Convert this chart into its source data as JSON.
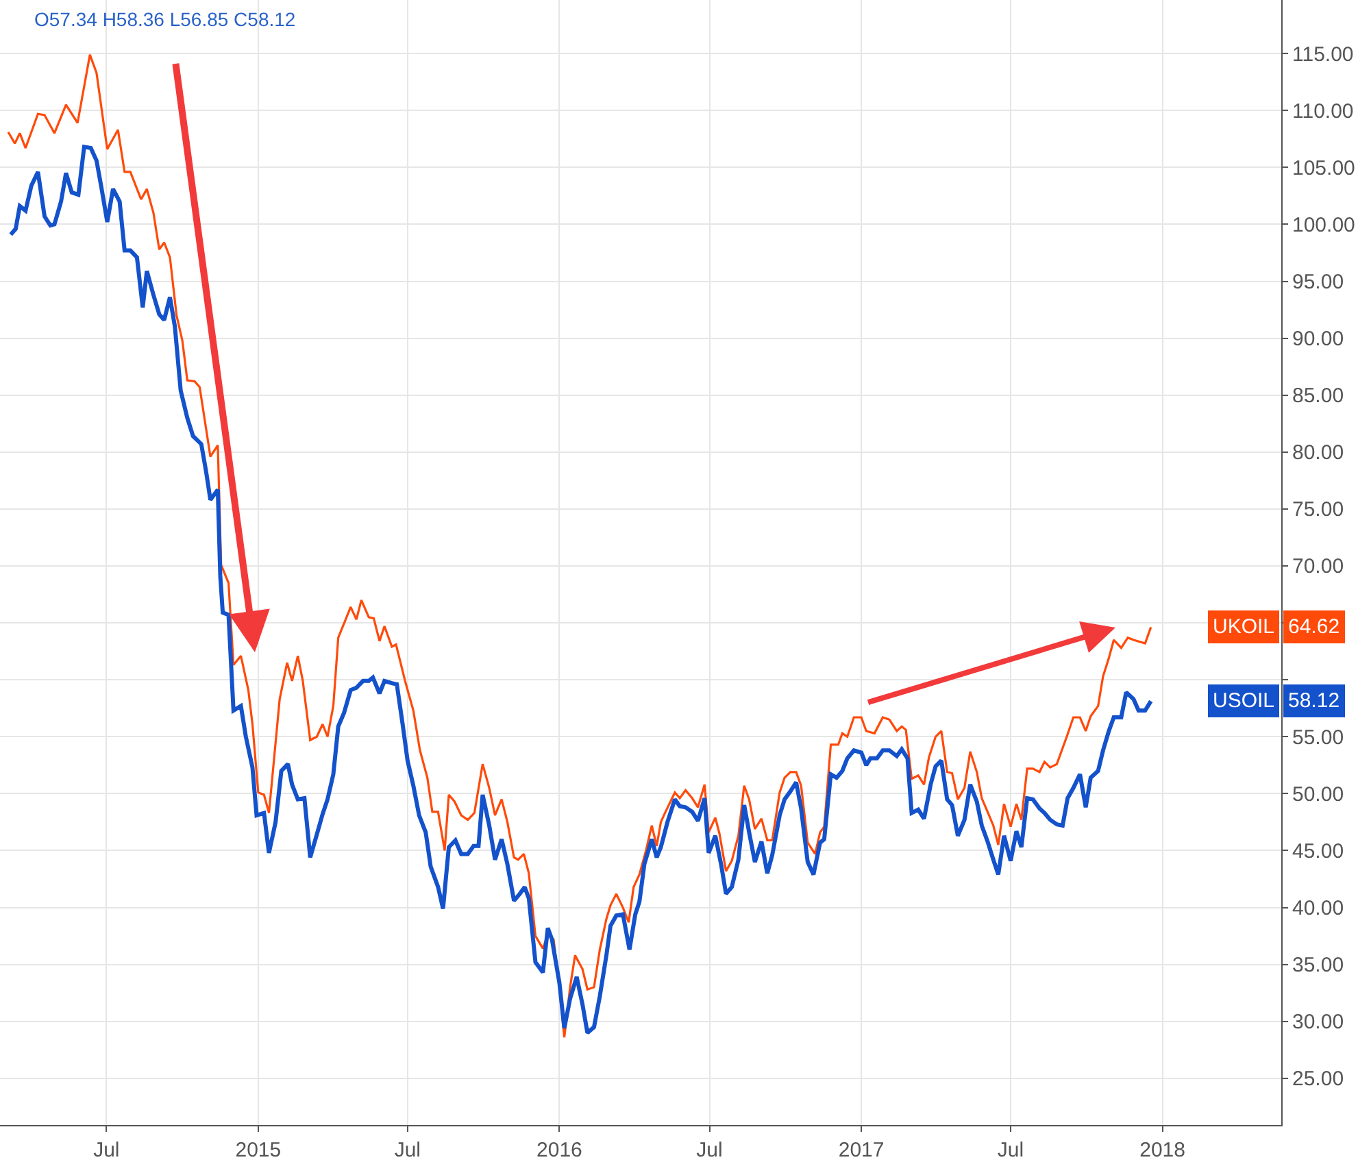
{
  "chart_data": {
    "type": "line",
    "xlim": [
      "2014-02-22",
      "2018-05-25"
    ],
    "ylim": [
      20.9,
      119.7
    ],
    "xticks": [
      {
        "value": "2014-07-01",
        "label": "Jul"
      },
      {
        "value": "2015-01-01",
        "label": "2015"
      },
      {
        "value": "2015-07-01",
        "label": "Jul"
      },
      {
        "value": "2016-01-01",
        "label": "2016"
      },
      {
        "value": "2016-07-01",
        "label": "Jul"
      },
      {
        "value": "2017-01-01",
        "label": "2017"
      },
      {
        "value": "2017-07-01",
        "label": "Jul"
      },
      {
        "value": "2018-01-01",
        "label": "2018"
      }
    ],
    "yticks": [
      {
        "value": 25,
        "label": "25.00"
      },
      {
        "value": 30,
        "label": "30.00"
      },
      {
        "value": 35,
        "label": "35.00"
      },
      {
        "value": 40,
        "label": "40.00"
      },
      {
        "value": 45,
        "label": "45.00"
      },
      {
        "value": 50,
        "label": "50.00"
      },
      {
        "value": 55,
        "label": "55.00"
      },
      {
        "value": 60,
        "label": null
      },
      {
        "value": 65,
        "label": null
      },
      {
        "value": 70,
        "label": "70.00"
      },
      {
        "value": 75,
        "label": "75.00"
      },
      {
        "value": 80,
        "label": "80.00"
      },
      {
        "value": 85,
        "label": "85.00"
      },
      {
        "value": 90,
        "label": "90.00"
      },
      {
        "value": 95,
        "label": "95.00"
      },
      {
        "value": 100,
        "label": "100.00"
      },
      {
        "value": 105,
        "label": "105.00"
      },
      {
        "value": 110,
        "label": "110.00"
      },
      {
        "value": 115,
        "label": "115.00"
      }
    ],
    "grid": true,
    "legend": "right",
    "marker": "none",
    "line_style": "solid",
    "annotations": [
      "O57.34 H58.36 L56.85 C58.12",
      "64.62",
      "58.12"
    ],
    "series": [
      {
        "name": "UKOIL",
        "color": "#ff4a0a",
        "x": [
          "2014-03-04",
          "2014-03-12",
          "2014-03-18",
          "2014-03-25",
          "2014-04-09",
          "2014-04-17",
          "2014-04-29",
          "2014-05-13",
          "2014-05-27",
          "2014-06-11",
          "2014-06-19",
          "2014-07-02",
          "2014-07-15",
          "2014-07-23",
          "2014-07-30",
          "2014-08-12",
          "2014-08-19",
          "2014-08-27",
          "2014-09-03",
          "2014-09-09",
          "2014-09-16",
          "2014-09-24",
          "2014-10-01",
          "2014-10-07",
          "2014-10-16",
          "2014-10-22",
          "2014-11-04",
          "2014-11-13",
          "2014-11-17",
          "2014-11-26",
          "2014-12-02",
          "2014-12-11",
          "2014-12-20",
          "2014-12-25",
          "2015-01-01",
          "2015-01-08",
          "2015-01-14",
          "2015-01-27",
          "2015-02-05",
          "2015-02-11",
          "2015-02-18",
          "2015-02-24",
          "2015-03-05",
          "2015-03-13",
          "2015-03-20",
          "2015-03-26",
          "2015-04-02",
          "2015-04-08",
          "2015-04-17",
          "2015-04-23",
          "2015-04-30",
          "2015-05-06",
          "2015-05-15",
          "2015-05-21",
          "2015-05-28",
          "2015-06-03",
          "2015-06-12",
          "2015-06-17",
          "2015-06-28",
          "2015-07-08",
          "2015-07-16",
          "2015-07-25",
          "2015-07-31",
          "2015-08-07",
          "2015-08-15",
          "2015-08-20",
          "2015-08-27",
          "2015-09-04",
          "2015-09-12",
          "2015-09-20",
          "2015-09-30",
          "2015-10-08",
          "2015-10-15",
          "2015-10-23",
          "2015-10-30",
          "2015-11-07",
          "2015-11-12",
          "2015-11-19",
          "2015-11-25",
          "2015-12-03",
          "2015-12-12",
          "2015-12-18",
          "2015-12-25",
          "2016-01-01",
          "2016-01-07",
          "2016-01-14",
          "2016-01-20",
          "2016-01-29",
          "2016-02-04",
          "2016-02-12",
          "2016-02-19",
          "2016-02-27",
          "2016-03-03",
          "2016-03-10",
          "2016-03-18",
          "2016-03-25",
          "2016-03-31",
          "2016-04-07",
          "2016-04-15",
          "2016-04-22",
          "2016-04-28",
          "2016-05-03",
          "2016-05-08",
          "2016-05-20",
          "2016-05-26",
          "2016-06-02",
          "2016-06-10",
          "2016-06-17",
          "2016-06-25",
          "2016-06-30",
          "2016-07-08",
          "2016-07-13",
          "2016-07-21",
          "2016-07-28",
          "2016-08-05",
          "2016-08-12",
          "2016-08-18",
          "2016-08-25",
          "2016-09-02",
          "2016-09-09",
          "2016-09-15",
          "2016-09-24",
          "2016-09-30",
          "2016-10-07",
          "2016-10-14",
          "2016-10-20",
          "2016-10-28",
          "2016-11-06",
          "2016-11-12",
          "2016-11-17",
          "2016-11-25",
          "2016-12-04",
          "2016-12-09",
          "2016-12-15",
          "2016-12-23",
          "2017-01-01",
          "2017-01-07",
          "2017-01-17",
          "2017-01-27",
          "2017-02-04",
          "2017-02-13",
          "2017-02-19",
          "2017-02-24",
          "2017-03-03",
          "2017-03-11",
          "2017-03-18",
          "2017-03-24",
          "2017-04-01",
          "2017-04-08",
          "2017-04-15",
          "2017-04-21",
          "2017-04-28",
          "2017-05-06",
          "2017-05-13",
          "2017-05-21",
          "2017-05-27",
          "2017-06-03",
          "2017-06-10",
          "2017-06-16",
          "2017-06-23",
          "2017-07-01",
          "2017-07-08",
          "2017-07-14",
          "2017-07-21",
          "2017-07-28",
          "2017-08-05",
          "2017-08-11",
          "2017-08-18",
          "2017-08-26",
          "2017-08-31",
          "2017-09-07",
          "2017-09-15",
          "2017-09-23",
          "2017-09-30",
          "2017-10-06",
          "2017-10-15",
          "2017-10-21",
          "2017-10-28",
          "2017-11-03",
          "2017-11-12",
          "2017-11-20",
          "2017-11-27",
          "2017-12-11",
          "2017-12-18"
        ],
        "values": [
          108.1,
          107.1,
          108.0,
          106.7,
          109.7,
          109.6,
          108.0,
          110.5,
          108.9,
          114.9,
          113.3,
          106.6,
          108.3,
          104.6,
          104.6,
          102.2,
          103.1,
          101.0,
          97.8,
          98.4,
          97.1,
          92.0,
          89.8,
          86.3,
          86.2,
          85.7,
          79.6,
          80.6,
          70.1,
          68.5,
          61.3,
          62.1,
          59.1,
          56.1,
          50.1,
          49.9,
          48.3,
          58.3,
          61.5,
          59.9,
          62.1,
          59.9,
          54.7,
          55.0,
          56.1,
          55.0,
          57.7,
          63.7,
          65.3,
          66.4,
          65.3,
          67.0,
          65.5,
          65.4,
          63.4,
          64.7,
          62.9,
          63.1,
          59.9,
          57.3,
          53.8,
          51.4,
          48.4,
          48.4,
          45.0,
          49.9,
          49.3,
          48.1,
          47.7,
          48.3,
          52.6,
          50.5,
          48.1,
          49.5,
          47.5,
          44.4,
          44.2,
          44.7,
          43.0,
          37.5,
          36.4,
          37.6,
          37.2,
          33.0,
          28.6,
          33.0,
          35.8,
          34.6,
          32.8,
          33.0,
          36.3,
          39.0,
          40.2,
          41.2,
          40.0,
          38.7,
          41.8,
          42.9,
          45.0,
          47.2,
          45.4,
          47.5,
          48.3,
          50.1,
          49.6,
          50.3,
          49.6,
          48.8,
          50.8,
          46.6,
          47.9,
          46.5,
          43.2,
          44.1,
          46.3,
          50.7,
          49.5,
          46.9,
          47.8,
          45.9,
          45.9,
          50.1,
          51.4,
          51.9,
          51.9,
          50.7,
          45.7,
          44.7,
          46.6,
          47.1,
          54.3,
          54.3,
          55.3,
          55.0,
          56.7,
          56.7,
          55.5,
          55.3,
          56.7,
          56.5,
          55.5,
          55.9,
          55.6,
          51.3,
          51.6,
          50.8,
          53.2,
          55.0,
          55.5,
          51.9,
          51.8,
          49.5,
          50.5,
          53.7,
          51.9,
          49.6,
          48.4,
          47.2,
          45.5,
          49.1,
          47.1,
          49.1,
          47.7,
          52.2,
          52.2,
          51.9,
          52.8,
          52.3,
          52.6,
          53.6,
          55.0,
          56.7,
          56.7,
          55.5,
          56.8,
          57.7,
          60.3,
          61.9,
          63.5,
          62.8,
          63.7,
          63.5,
          63.2,
          64.62
        ]
      },
      {
        "name": "USOIL",
        "color": "#1452cc",
        "x": [
          "2014-03-07",
          "2014-03-13",
          "2014-03-18",
          "2014-03-25",
          "2014-04-01",
          "2014-04-09",
          "2014-04-17",
          "2014-04-24",
          "2014-04-29",
          "2014-05-07",
          "2014-05-13",
          "2014-05-20",
          "2014-05-28",
          "2014-06-04",
          "2014-06-12",
          "2014-06-19",
          "2014-06-25",
          "2014-07-02",
          "2014-07-09",
          "2014-07-17",
          "2014-07-23",
          "2014-07-30",
          "2014-08-07",
          "2014-08-14",
          "2014-08-19",
          "2014-08-27",
          "2014-09-03",
          "2014-09-09",
          "2014-09-16",
          "2014-09-22",
          "2014-09-29",
          "2014-10-07",
          "2014-10-14",
          "2014-10-24",
          "2014-10-30",
          "2014-11-04",
          "2014-11-13",
          "2014-11-16",
          "2014-11-19",
          "2014-11-26",
          "2014-12-02",
          "2014-12-11",
          "2014-12-17",
          "2014-12-25",
          "2014-12-30",
          "2015-01-08",
          "2015-01-14",
          "2015-01-22",
          "2015-01-29",
          "2015-02-06",
          "2015-02-11",
          "2015-02-18",
          "2015-02-26",
          "2015-03-05",
          "2015-03-13",
          "2015-03-20",
          "2015-03-26",
          "2015-04-02",
          "2015-04-08",
          "2015-04-15",
          "2015-04-23",
          "2015-04-30",
          "2015-05-08",
          "2015-05-15",
          "2015-05-20",
          "2015-05-28",
          "2015-06-03",
          "2015-06-12",
          "2015-06-18",
          "2015-06-25",
          "2015-07-01",
          "2015-07-08",
          "2015-07-15",
          "2015-07-23",
          "2015-07-29",
          "2015-08-07",
          "2015-08-13",
          "2015-08-20",
          "2015-08-28",
          "2015-09-04",
          "2015-09-12",
          "2015-09-19",
          "2015-09-25",
          "2015-09-30",
          "2015-10-08",
          "2015-10-15",
          "2015-10-23",
          "2015-10-30",
          "2015-11-07",
          "2015-11-14",
          "2015-11-20",
          "2015-11-25",
          "2015-12-03",
          "2015-12-12",
          "2015-12-18",
          "2015-12-23",
          "2016-01-01",
          "2016-01-07",
          "2016-01-14",
          "2016-01-22",
          "2016-01-29",
          "2016-02-04",
          "2016-02-12",
          "2016-02-19",
          "2016-02-27",
          "2016-03-03",
          "2016-03-10",
          "2016-03-18",
          "2016-03-26",
          "2016-04-02",
          "2016-04-07",
          "2016-04-13",
          "2016-04-22",
          "2016-04-28",
          "2016-05-03",
          "2016-05-11",
          "2016-05-20",
          "2016-05-26",
          "2016-06-02",
          "2016-06-10",
          "2016-06-17",
          "2016-06-25",
          "2016-06-30",
          "2016-07-08",
          "2016-07-15",
          "2016-07-21",
          "2016-07-28",
          "2016-08-05",
          "2016-08-12",
          "2016-08-18",
          "2016-08-25",
          "2016-09-02",
          "2016-09-09",
          "2016-09-15",
          "2016-09-24",
          "2016-09-30",
          "2016-10-07",
          "2016-10-14",
          "2016-10-20",
          "2016-10-28",
          "2016-11-04",
          "2016-11-12",
          "2016-11-17",
          "2016-11-25",
          "2016-12-02",
          "2016-12-09",
          "2016-12-15",
          "2016-12-23",
          "2017-01-01",
          "2017-01-07",
          "2017-01-12",
          "2017-01-20",
          "2017-01-27",
          "2017-02-04",
          "2017-02-13",
          "2017-02-19",
          "2017-02-26",
          "2017-03-03",
          "2017-03-11",
          "2017-03-18",
          "2017-03-26",
          "2017-04-01",
          "2017-04-08",
          "2017-04-15",
          "2017-04-21",
          "2017-04-28",
          "2017-05-06",
          "2017-05-13",
          "2017-05-21",
          "2017-05-27",
          "2017-06-03",
          "2017-06-10",
          "2017-06-16",
          "2017-06-23",
          "2017-07-01",
          "2017-07-08",
          "2017-07-14",
          "2017-07-21",
          "2017-07-28",
          "2017-08-05",
          "2017-08-11",
          "2017-08-18",
          "2017-08-26",
          "2017-09-02",
          "2017-09-08",
          "2017-09-15",
          "2017-09-23",
          "2017-09-30",
          "2017-10-06",
          "2017-10-15",
          "2017-10-21",
          "2017-10-28",
          "2017-11-03",
          "2017-11-12",
          "2017-11-18",
          "2017-11-27",
          "2017-12-03",
          "2017-12-11",
          "2017-12-18"
        ],
        "values": [
          99.1,
          99.6,
          101.6,
          101.2,
          103.4,
          104.6,
          100.7,
          99.9,
          100.0,
          102.0,
          104.5,
          102.8,
          102.6,
          106.8,
          106.7,
          105.6,
          103.2,
          100.2,
          103.1,
          102.0,
          97.7,
          97.7,
          97.1,
          92.7,
          95.9,
          93.8,
          92.1,
          91.6,
          93.6,
          91.0,
          85.4,
          83.0,
          81.4,
          80.7,
          78.2,
          75.8,
          76.7,
          69.1,
          65.9,
          65.7,
          57.3,
          57.7,
          55.0,
          52.3,
          48.1,
          48.3,
          44.8,
          47.5,
          52.0,
          52.6,
          50.8,
          49.5,
          49.6,
          44.4,
          46.4,
          48.2,
          49.5,
          51.7,
          55.9,
          57.1,
          59.1,
          59.3,
          59.9,
          59.9,
          60.2,
          58.8,
          59.9,
          59.7,
          59.6,
          56.1,
          52.9,
          50.7,
          48.1,
          46.6,
          43.6,
          41.8,
          39.9,
          45.3,
          45.9,
          44.7,
          44.7,
          45.4,
          45.4,
          49.9,
          47.2,
          44.2,
          46.0,
          43.8,
          40.6,
          41.2,
          41.8,
          40.8,
          35.2,
          34.3,
          38.2,
          37.2,
          33.4,
          29.4,
          32.0,
          33.9,
          31.5,
          29.0,
          29.5,
          32.2,
          35.8,
          38.4,
          39.3,
          39.4,
          36.3,
          39.4,
          40.5,
          43.8,
          46.0,
          44.4,
          45.3,
          47.5,
          49.5,
          48.9,
          48.8,
          48.4,
          47.6,
          49.6,
          44.8,
          46.3,
          43.8,
          41.2,
          41.8,
          44.2,
          49.0,
          46.6,
          44.0,
          45.8,
          43.0,
          44.6,
          48.1,
          49.5,
          50.2,
          51.0,
          48.7,
          44.0,
          42.9,
          45.7,
          46.0,
          51.7,
          51.4,
          52.0,
          53.1,
          53.8,
          53.6,
          52.5,
          53.1,
          53.1,
          53.8,
          53.8,
          53.3,
          53.9,
          53.1,
          48.3,
          48.6,
          47.8,
          50.8,
          52.4,
          52.9,
          49.5,
          49.0,
          46.3,
          47.7,
          50.8,
          49.3,
          47.2,
          45.8,
          44.2,
          42.9,
          46.3,
          44.1,
          46.7,
          45.3,
          49.6,
          49.5,
          48.7,
          48.3,
          47.7,
          47.3,
          47.2,
          49.6,
          50.5,
          51.7,
          48.8,
          51.4,
          52.0,
          53.8,
          55.5,
          56.7,
          56.7,
          58.9,
          58.3,
          57.3,
          57.3,
          58.12
        ]
      }
    ]
  }
}
